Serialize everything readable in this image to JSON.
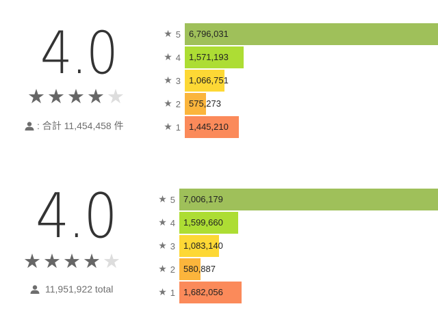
{
  "colors": {
    "bar_5": "#9fc05a",
    "bar_4": "#addd34",
    "bar_3": "#fdd835",
    "bar_2": "#fbb53c",
    "bar_1": "#fb8a5a",
    "star_filled": "#666666",
    "star_empty": "#dddddd"
  },
  "panels": [
    {
      "score": "4.0",
      "stars_filled": 4,
      "stars_total": 5,
      "total_text": ": 合計 11,454,458 件",
      "person_icon": "person-icon",
      "rows": [
        {
          "label": "5",
          "count": "6,796,031",
          "value": 6796031
        },
        {
          "label": "4",
          "count": "1,571,193",
          "value": 1571193
        },
        {
          "label": "3",
          "count": "1,066,751",
          "value": 1066751
        },
        {
          "label": "2",
          "count": "575,273",
          "value": 575273
        },
        {
          "label": "1",
          "count": "1,445,210",
          "value": 1445210
        }
      ]
    },
    {
      "score": "4.0",
      "stars_filled": 4,
      "stars_total": 5,
      "total_text": "11,951,922 total",
      "person_icon": "person-icon",
      "rows": [
        {
          "label": "5",
          "count": "7,006,179",
          "value": 7006179
        },
        {
          "label": "4",
          "count": "1,599,660",
          "value": 1599660
        },
        {
          "label": "3",
          "count": "1,083,140",
          "value": 1083140
        },
        {
          "label": "2",
          "count": "580,887",
          "value": 580887
        },
        {
          "label": "1",
          "count": "1,682,056",
          "value": 1682056
        }
      ]
    }
  ]
}
